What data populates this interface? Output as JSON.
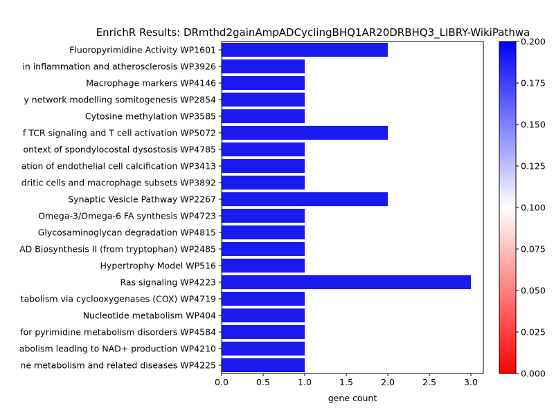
{
  "chart_data": {
    "type": "bar",
    "orientation": "horizontal",
    "title": "EnrichR Results: DRmthd2gainAmpADCyclingBHQ1AR20DRBHQ3_LIBRY-WikiPathwa",
    "xlabel": "gene count",
    "ylabel": "",
    "xlim": [
      0,
      3.15
    ],
    "xticks": [
      "0.0",
      "0.5",
      "1.0",
      "1.5",
      "2.0",
      "2.5",
      "3.0"
    ],
    "categories": [
      "Fluoropyrimidine Activity WP1601",
      "in inflammation and atherosclerosis WP3926",
      "Macrophage markers WP4146",
      "y network modelling somitogenesis  WP2854",
      "Cytosine methylation WP3585",
      "f TCR signaling and T cell activation WP5072",
      "ontext of spondylocostal dysostosis WP4785",
      "ation of endothelial cell calcification WP3413",
      "dritic cells and macrophage subsets WP3892",
      "Synaptic Vesicle Pathway WP2267",
      "Omega-3/Omega-6 FA synthesis WP4723",
      "Glycosaminoglycan degradation WP4815",
      "AD Biosynthesis II (from tryptophan) WP2485",
      "Hypertrophy Model WP516",
      "Ras signaling WP4223",
      "tabolism via cyclooxygenases (COX) WP4719",
      "Nucleotide metabolism WP404",
      "for pyrimidine metabolism disorders WP4584",
      "abolism leading to NAD+ production WP4210",
      "ne metabolism and related diseases WP4225"
    ],
    "values": [
      2,
      1,
      1,
      1,
      1,
      2,
      1,
      1,
      1,
      2,
      1,
      1,
      1,
      1,
      3,
      1,
      1,
      1,
      1,
      1
    ],
    "bar_color": "#1a1aef",
    "colorbar": {
      "range": [
        0.0,
        0.2
      ],
      "ticks": [
        "0.000",
        "0.025",
        "0.050",
        "0.075",
        "0.100",
        "0.125",
        "0.150",
        "0.175",
        "0.200"
      ],
      "colormap": [
        "#ff0000",
        "#ffffff",
        "#0000ff"
      ]
    },
    "grid": false
  }
}
